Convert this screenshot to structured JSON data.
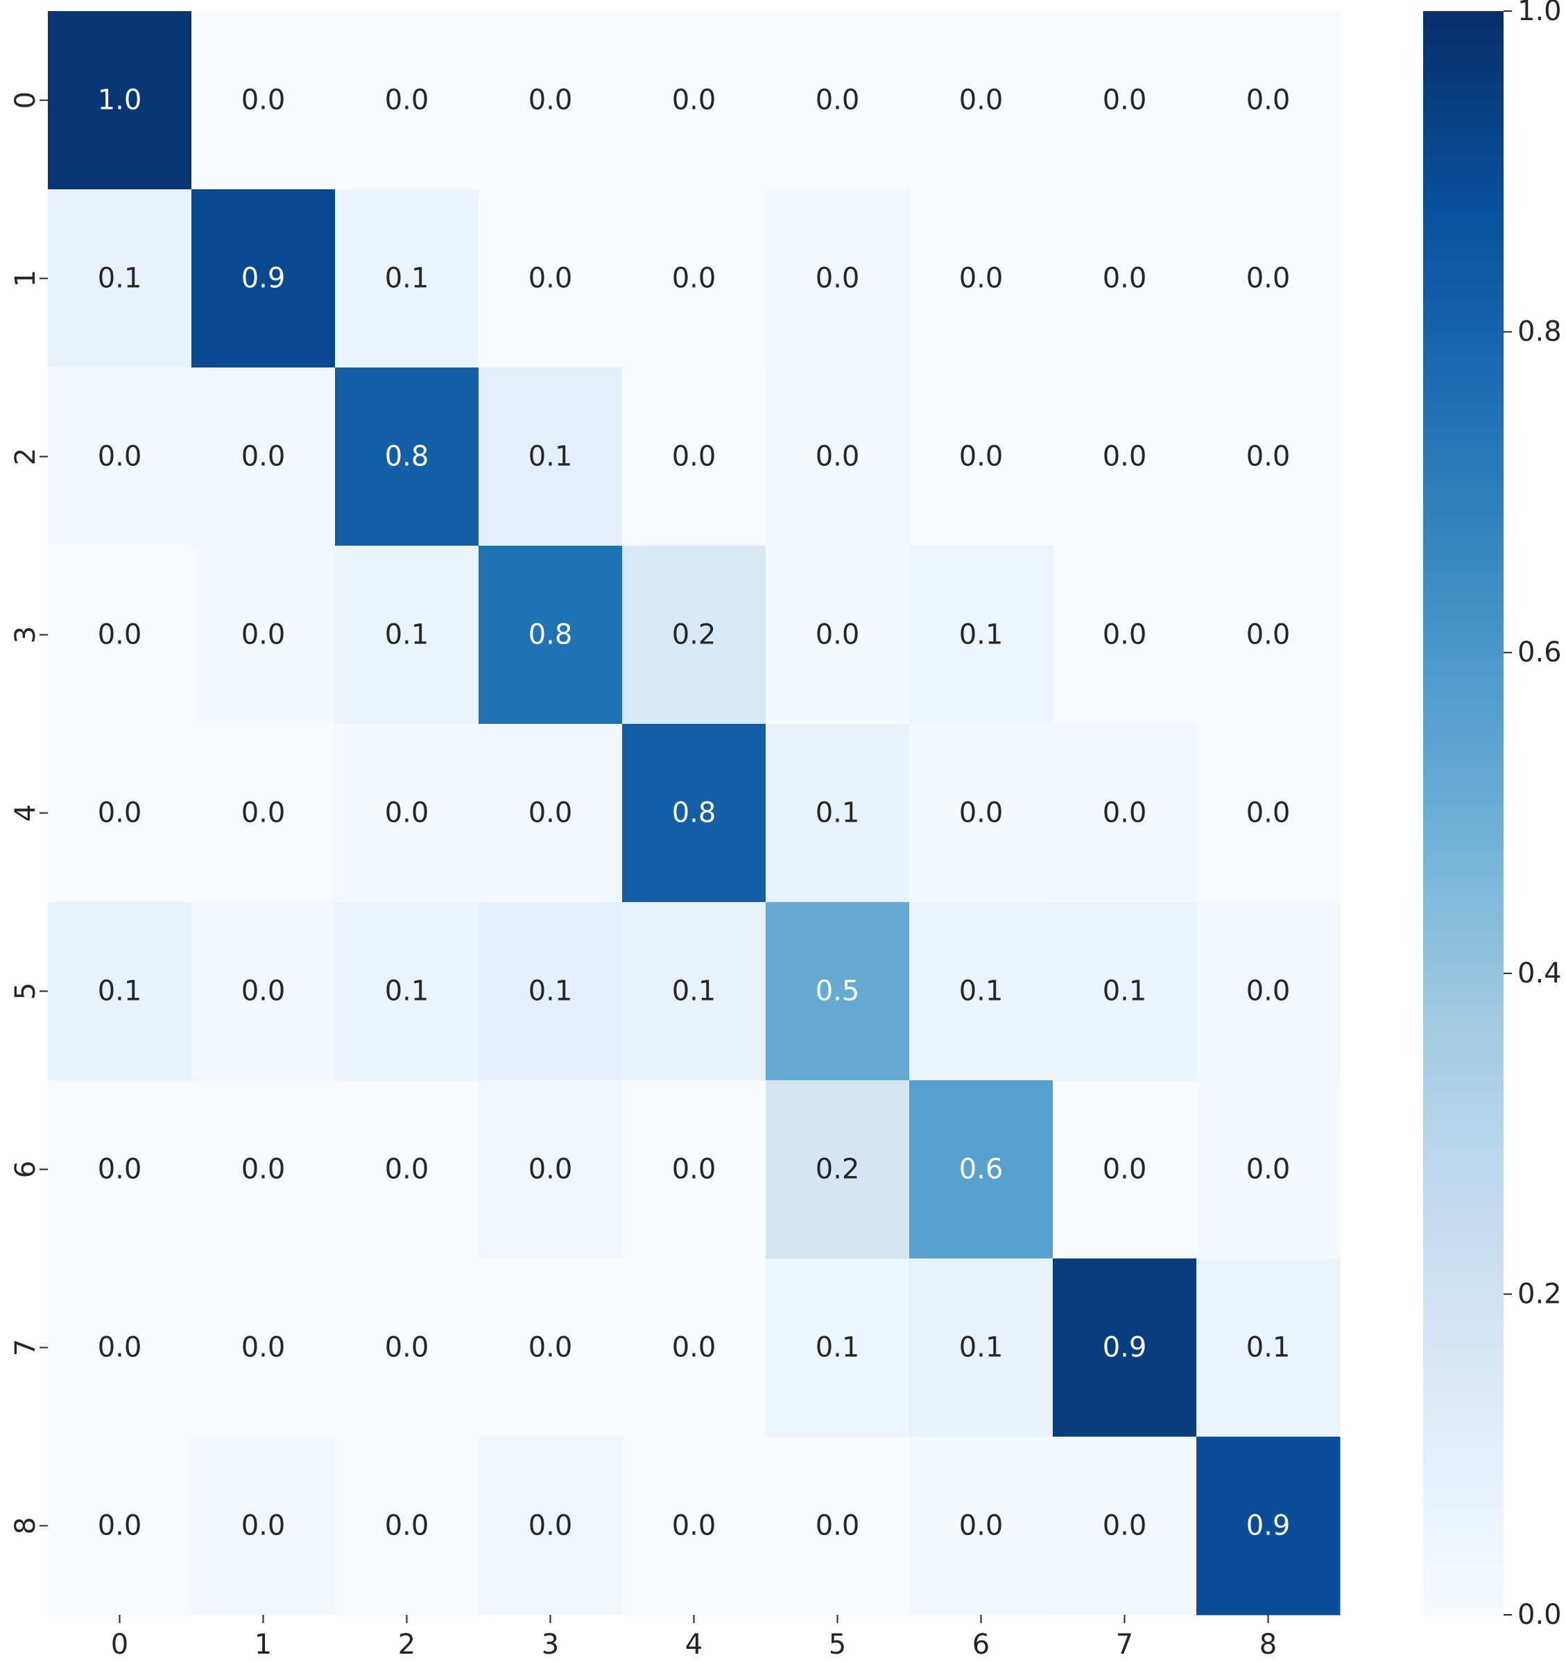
{
  "chart_data": {
    "type": "heatmap",
    "title": "",
    "xlabel": "",
    "ylabel": "",
    "x_tick_labels": [
      "0",
      "1",
      "2",
      "3",
      "4",
      "5",
      "6",
      "7",
      "8"
    ],
    "y_tick_labels": [
      "0",
      "1",
      "2",
      "3",
      "4",
      "5",
      "6",
      "7",
      "8"
    ],
    "values": [
      [
        0.98,
        0.0,
        0.0,
        0.0,
        0.0,
        0.0,
        0.0,
        0.0,
        0.0
      ],
      [
        0.07,
        0.91,
        0.06,
        0.0,
        0.0,
        0.03,
        0.0,
        0.0,
        0.0
      ],
      [
        0.01,
        0.03,
        0.82,
        0.09,
        0.0,
        0.01,
        0.0,
        0.0,
        0.0
      ],
      [
        0.0,
        0.01,
        0.06,
        0.75,
        0.15,
        0.01,
        0.05,
        0.0,
        0.0
      ],
      [
        0.0,
        0.0,
        0.01,
        0.02,
        0.82,
        0.07,
        0.01,
        0.02,
        0.0
      ],
      [
        0.08,
        0.03,
        0.06,
        0.09,
        0.07,
        0.52,
        0.06,
        0.06,
        0.03
      ],
      [
        0.0,
        0.0,
        0.0,
        0.04,
        0.0,
        0.17,
        0.56,
        0.0,
        0.01
      ],
      [
        0.0,
        0.0,
        0.0,
        0.0,
        0.0,
        0.05,
        0.08,
        0.95,
        0.06
      ],
      [
        0.0,
        0.03,
        0.0,
        0.04,
        0.0,
        0.0,
        0.01,
        0.02,
        0.89
      ]
    ],
    "cell_labels": [
      [
        "1.0",
        "0.0",
        "0.0",
        "0.0",
        "0.0",
        "0.0",
        "0.0",
        "0.0",
        "0.0"
      ],
      [
        "0.1",
        "0.9",
        "0.1",
        "0.0",
        "0.0",
        "0.0",
        "0.0",
        "0.0",
        "0.0"
      ],
      [
        "0.0",
        "0.0",
        "0.8",
        "0.1",
        "0.0",
        "0.0",
        "0.0",
        "0.0",
        "0.0"
      ],
      [
        "0.0",
        "0.0",
        "0.1",
        "0.8",
        "0.2",
        "0.0",
        "0.1",
        "0.0",
        "0.0"
      ],
      [
        "0.0",
        "0.0",
        "0.0",
        "0.0",
        "0.8",
        "0.1",
        "0.0",
        "0.0",
        "0.0"
      ],
      [
        "0.1",
        "0.0",
        "0.1",
        "0.1",
        "0.1",
        "0.5",
        "0.1",
        "0.1",
        "0.0"
      ],
      [
        "0.0",
        "0.0",
        "0.0",
        "0.0",
        "0.0",
        "0.2",
        "0.6",
        "0.0",
        "0.0"
      ],
      [
        "0.0",
        "0.0",
        "0.0",
        "0.0",
        "0.0",
        "0.1",
        "0.1",
        "0.9",
        "0.1"
      ],
      [
        "0.0",
        "0.0",
        "0.0",
        "0.0",
        "0.0",
        "0.0",
        "0.0",
        "0.0",
        "0.9"
      ]
    ],
    "colormap": "Blues",
    "colormap_stops": [
      "#f7fbff",
      "#deebf7",
      "#c6dbef",
      "#9ecae1",
      "#6baed6",
      "#4292c6",
      "#2171b5",
      "#08519c",
      "#08306b"
    ],
    "vmin": 0.0,
    "vmax": 1.0,
    "colorbar": {
      "ticks": [
        0.0,
        0.2,
        0.4,
        0.6,
        0.8,
        1.0
      ],
      "tick_labels": [
        "0.0",
        "0.2",
        "0.4",
        "0.6",
        "0.8",
        "1.0"
      ]
    },
    "text_color_dark": "#262626",
    "text_color_light": "#ffffff"
  }
}
